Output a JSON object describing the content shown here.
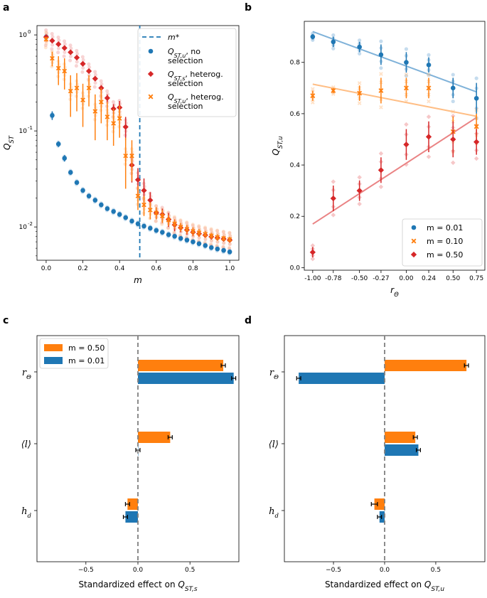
{
  "panels": {
    "a": {
      "letter": "a"
    },
    "b": {
      "letter": "b"
    },
    "c": {
      "letter": "c"
    },
    "d": {
      "letter": "d"
    }
  },
  "colors": {
    "blue": "#1f77b4",
    "orange": "#ff7f0e",
    "red": "#d62728",
    "light_blue": "#7fb2d9",
    "light_orange": "#ffbe85",
    "light_red": "#ea8384"
  },
  "chart_data": [
    {
      "id": "a",
      "type": "scatter",
      "yscale": "log",
      "xlabel_base": "m",
      "ylabel_base": "Q",
      "ylabel_sub": "ST",
      "xlim": [
        -0.05,
        1.05
      ],
      "ylim": [
        0.0045,
        1.25
      ],
      "xticks": [
        0.0,
        0.2,
        0.4,
        0.6,
        0.8,
        1.0
      ],
      "xtick_labels": [
        "0.0",
        "0.2",
        "0.4",
        "0.6",
        "0.8",
        "1.0"
      ],
      "yticks": [
        0.01,
        0.1,
        1.0
      ],
      "ytick_labels": [
        "10",
        "10",
        "10"
      ],
      "ytick_exponents": [
        "-2",
        "-1",
        "0"
      ],
      "vline": {
        "x": 0.51,
        "label": "m*"
      },
      "legend": [
        {
          "key": "vline",
          "line1": "m*",
          "line2": ""
        },
        {
          "key": "blue",
          "line1": "Q_ST,u, no",
          "line2": "selection",
          "sub": "ST,u",
          "line1_tail": ", no"
        },
        {
          "key": "red",
          "line1": "Q_ST,s, heterog.",
          "line2": "selection",
          "sub": "ST,s",
          "line1_tail": ", heterog."
        },
        {
          "key": "orange",
          "line1": "Q_ST,u, heterog.",
          "line2": "selection",
          "sub": "ST,u",
          "line1_tail": ", heterog."
        }
      ],
      "series": [
        {
          "name": "Q_ST,u no selection",
          "marker": "circle",
          "color": "blue",
          "x": [
            0.0,
            0.033,
            0.067,
            0.1,
            0.133,
            0.167,
            0.2,
            0.233,
            0.267,
            0.3,
            0.333,
            0.367,
            0.4,
            0.433,
            0.467,
            0.5,
            0.533,
            0.567,
            0.6,
            0.633,
            0.667,
            0.7,
            0.733,
            0.767,
            0.8,
            0.833,
            0.867,
            0.9,
            0.933,
            0.967,
            1.0
          ],
          "y": [
            0.95,
            0.145,
            0.073,
            0.052,
            0.037,
            0.029,
            0.024,
            0.021,
            0.019,
            0.017,
            0.0155,
            0.0145,
            0.0135,
            0.0125,
            0.0115,
            0.0108,
            0.0102,
            0.0097,
            0.0092,
            0.0088,
            0.0083,
            0.008,
            0.0076,
            0.0073,
            0.007,
            0.0067,
            0.0064,
            0.0061,
            0.0059,
            0.0057,
            0.0055
          ],
          "err": [
            0.02,
            0.015,
            0.005,
            0.004,
            0.002,
            0.001,
            0.001,
            0.0008,
            0.0007,
            0.0006,
            0.0005,
            0.0005,
            0.0004,
            0.0004,
            0.0003,
            0.0003,
            0.0003,
            0.0002,
            0.0002,
            0.0002,
            0.0002,
            0.0002,
            0.0002,
            0.0001,
            0.0001,
            0.0001,
            0.0001,
            0.0001,
            0.0001,
            0.0001,
            0.0001
          ]
        },
        {
          "name": "Q_ST,s heterog. selection",
          "marker": "diamond",
          "color": "red",
          "x": [
            0.0,
            0.033,
            0.067,
            0.1,
            0.133,
            0.167,
            0.2,
            0.233,
            0.267,
            0.3,
            0.333,
            0.367,
            0.4,
            0.433,
            0.467,
            0.5,
            0.533,
            0.567,
            0.6,
            0.633,
            0.667,
            0.7,
            0.733,
            0.767,
            0.8,
            0.833,
            0.867,
            0.9,
            0.933,
            0.967,
            1.0
          ],
          "y": [
            0.95,
            0.87,
            0.8,
            0.73,
            0.66,
            0.58,
            0.5,
            0.42,
            0.35,
            0.28,
            0.22,
            0.17,
            0.175,
            0.11,
            0.044,
            0.031,
            0.024,
            0.019,
            0.014,
            0.0135,
            0.012,
            0.0105,
            0.0098,
            0.0093,
            0.0088,
            0.0085,
            0.0082,
            0.0079,
            0.0077,
            0.0075,
            0.0073
          ],
          "err": [
            0.02,
            0.02,
            0.02,
            0.02,
            0.02,
            0.02,
            0.02,
            0.02,
            0.02,
            0.02,
            0.02,
            0.02,
            0.03,
            0.03,
            0.015,
            0.01,
            0.008,
            0.004,
            0.002,
            0.002,
            0.002,
            0.0015,
            0.001,
            0.001,
            0.0008,
            0.0006,
            0.0005,
            0.0005,
            0.0004,
            0.0004,
            0.0004
          ]
        },
        {
          "name": "Q_ST,u heterog. selection",
          "marker": "x",
          "color": "orange",
          "x": [
            0.0,
            0.033,
            0.067,
            0.1,
            0.133,
            0.167,
            0.2,
            0.233,
            0.267,
            0.3,
            0.333,
            0.367,
            0.4,
            0.433,
            0.467,
            0.5,
            0.533,
            0.567,
            0.6,
            0.633,
            0.667,
            0.7,
            0.733,
            0.767,
            0.8,
            0.833,
            0.867,
            0.9,
            0.933,
            0.967,
            1.0
          ],
          "y": [
            0.9,
            0.57,
            0.45,
            0.42,
            0.26,
            0.28,
            0.21,
            0.28,
            0.16,
            0.2,
            0.14,
            0.12,
            0.135,
            0.055,
            0.055,
            0.021,
            0.017,
            0.015,
            0.014,
            0.013,
            0.0118,
            0.0108,
            0.01,
            0.0095,
            0.009,
            0.0087,
            0.0084,
            0.0081,
            0.0078,
            0.0076,
            0.0074
          ],
          "err": [
            0.05,
            0.1,
            0.15,
            0.15,
            0.12,
            0.12,
            0.1,
            0.1,
            0.08,
            0.08,
            0.06,
            0.05,
            0.05,
            0.03,
            0.025,
            0.006,
            0.004,
            0.003,
            0.002,
            0.002,
            0.0015,
            0.0012,
            0.001,
            0.001,
            0.0009,
            0.0008,
            0.0007,
            0.0006,
            0.0006,
            0.0005,
            0.0005
          ]
        }
      ]
    },
    {
      "id": "b",
      "type": "scatter",
      "xlabel_base": "r",
      "xlabel_sub": "Θ",
      "ylabel_base": "Q",
      "ylabel_sub": "ST,u",
      "xlim": [
        -1.09,
        0.84
      ],
      "ylim": [
        -0.01,
        0.96
      ],
      "xticks": [
        -1.0,
        -0.78,
        -0.5,
        -0.27,
        0.0,
        0.24,
        0.5,
        0.75
      ],
      "xtick_labels": [
        "-1.00",
        "-0.78",
        "-0.50",
        "-0.27",
        "0.00",
        "0.24",
        "0.50",
        "0.75"
      ],
      "yticks": [
        0.0,
        0.2,
        0.4,
        0.6,
        0.8
      ],
      "ytick_labels": [
        "0.0",
        "0.2",
        "0.4",
        "0.6",
        "0.8"
      ],
      "legend": [
        {
          "key": "blue",
          "label": "m = 0.01",
          "marker": "circle"
        },
        {
          "key": "orange",
          "label": "m = 0.10",
          "marker": "x"
        },
        {
          "key": "red",
          "label": "m = 0.50",
          "marker": "diamond"
        }
      ],
      "series": [
        {
          "name": "m = 0.01",
          "marker": "circle",
          "color": "blue",
          "x": [
            -1.0,
            -0.78,
            -0.5,
            -0.27,
            0.0,
            0.24,
            0.5,
            0.75
          ],
          "y": [
            0.9,
            0.88,
            0.86,
            0.83,
            0.8,
            0.79,
            0.7,
            0.66
          ],
          "err": [
            0.01,
            0.02,
            0.02,
            0.04,
            0.04,
            0.03,
            0.04,
            0.06
          ],
          "fit": [
            0.92,
            0.685
          ]
        },
        {
          "name": "m = 0.10",
          "marker": "x",
          "color": "orange",
          "x": [
            -1.0,
            -0.78,
            -0.5,
            -0.27,
            0.0,
            0.24,
            0.5,
            0.75
          ],
          "y": [
            0.67,
            0.69,
            0.68,
            0.69,
            0.7,
            0.7,
            0.53,
            0.55
          ],
          "err": [
            0.02,
            0.01,
            0.03,
            0.05,
            0.04,
            0.04,
            0.06,
            0.05
          ],
          "fit": [
            0.715,
            0.59
          ]
        },
        {
          "name": "m = 0.50",
          "marker": "diamond",
          "color": "red",
          "x": [
            -1.0,
            -0.78,
            -0.5,
            -0.27,
            0.0,
            0.24,
            0.5,
            0.75
          ],
          "y": [
            0.06,
            0.27,
            0.3,
            0.38,
            0.48,
            0.51,
            0.5,
            0.49
          ],
          "err": [
            0.02,
            0.05,
            0.04,
            0.05,
            0.06,
            0.06,
            0.07,
            0.05
          ],
          "fit": [
            0.17,
            0.585
          ]
        }
      ]
    },
    {
      "id": "c",
      "type": "bar",
      "orientation": "horizontal",
      "xlabel_prefix": "Standardized effect on ",
      "xlabel_base": "Q",
      "xlabel_sub": "ST,s",
      "xlim": [
        -0.97,
        0.97
      ],
      "xticks": [
        -0.5,
        0.0,
        0.5
      ],
      "xtick_labels": [
        "−0.5",
        "0.0",
        "0.5"
      ],
      "categories": [
        "r_Θ",
        "⟨l⟩",
        "h_d"
      ],
      "category_labels": [
        {
          "base": "r",
          "sub": "Θ"
        },
        {
          "base": "⟨l⟩",
          "sub": ""
        },
        {
          "base": "h",
          "sub": "d"
        }
      ],
      "legend": [
        {
          "key": "orange",
          "label": "m = 0.50"
        },
        {
          "key": "blue",
          "label": "m = 0.01"
        }
      ],
      "series": [
        {
          "name": "m = 0.50",
          "color": "orange",
          "values": [
            0.82,
            0.31,
            -0.1
          ],
          "err": [
            0.02,
            0.02,
            0.02
          ]
        },
        {
          "name": "m = 0.01",
          "color": "blue",
          "values": [
            0.92,
            0.0,
            -0.12
          ],
          "err": [
            0.02,
            0.02,
            0.02
          ]
        }
      ]
    },
    {
      "id": "d",
      "type": "bar",
      "orientation": "horizontal",
      "xlabel_prefix": "Standardized effect on ",
      "xlabel_base": "Q",
      "xlabel_sub": "ST,u",
      "xlim": [
        -0.98,
        0.98
      ],
      "xticks": [
        -0.5,
        0.0,
        0.5
      ],
      "xtick_labels": [
        "−0.5",
        "0.0",
        "0.5"
      ],
      "categories": [
        "r_Θ",
        "⟨l⟩",
        "h_d"
      ],
      "category_labels": [
        {
          "base": "r",
          "sub": "Θ"
        },
        {
          "base": "⟨l⟩",
          "sub": ""
        },
        {
          "base": "h",
          "sub": "d"
        }
      ],
      "series": [
        {
          "name": "m = 0.50",
          "color": "orange",
          "values": [
            0.8,
            0.3,
            -0.1
          ],
          "err": [
            0.02,
            0.02,
            0.03
          ]
        },
        {
          "name": "m = 0.01",
          "color": "blue",
          "values": [
            -0.84,
            0.33,
            -0.05
          ],
          "err": [
            0.02,
            0.02,
            0.02
          ]
        }
      ]
    }
  ]
}
